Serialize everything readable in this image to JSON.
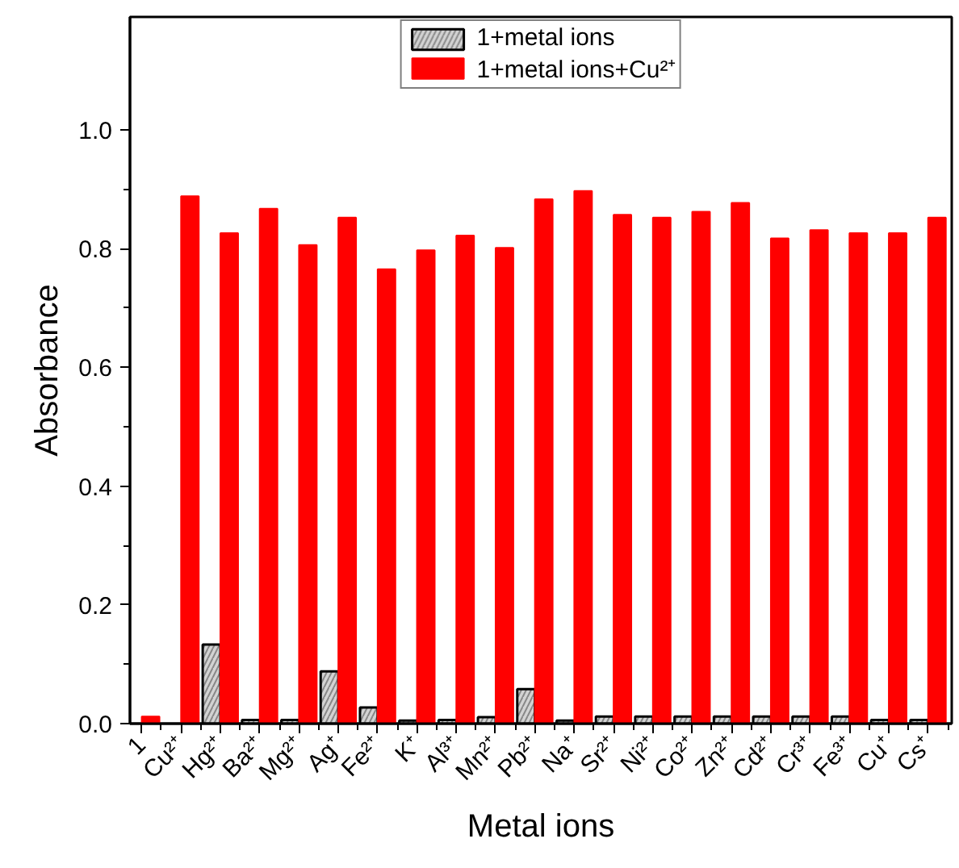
{
  "chart_data": {
    "type": "bar",
    "xlabel": "Metal ions",
    "ylabel": "Absorbance",
    "categories": [
      "1",
      "Cu²⁺",
      "Hg²⁺",
      "Ba²⁺",
      "Mg²⁺",
      "Ag⁺",
      "Fe²⁺",
      "K⁺",
      "Al³⁺",
      "Mn²⁺",
      "Pb²⁺",
      "Na⁺",
      "Sr²⁺",
      "Ni²⁺",
      "Co²⁺",
      "Zn²⁺",
      "Cd²⁺",
      "Cr³⁺",
      "Fe³⁺",
      "Cu⁺",
      "Cs⁺"
    ],
    "series": [
      {
        "name": "1+metal ions",
        "color": "#d3d3d3",
        "values": [
          null,
          null,
          0.133,
          0.006,
          0.006,
          0.088,
          0.027,
          0.005,
          0.006,
          0.011,
          0.058,
          0.005,
          0.012,
          0.012,
          0.012,
          0.012,
          0.012,
          0.012,
          0.012,
          0.006,
          0.006
        ]
      },
      {
        "name": "1+metal ions+Cu²⁺",
        "color": "#ff0000",
        "values": [
          0.012,
          0.888,
          0.826,
          0.867,
          0.806,
          0.852,
          0.765,
          0.797,
          0.822,
          0.801,
          0.883,
          0.897,
          0.857,
          0.852,
          0.862,
          0.877,
          0.817,
          0.831,
          0.826,
          0.826,
          0.852
        ]
      }
    ],
    "ylim": [
      0,
      1.19
    ],
    "yticks": [
      {
        "value": 0,
        "label": "0.0"
      },
      0.2,
      0.4,
      0.6,
      0.8,
      {
        "value": 1.0,
        "label": "1.0"
      }
    ],
    "grid": false,
    "legend": "top"
  }
}
